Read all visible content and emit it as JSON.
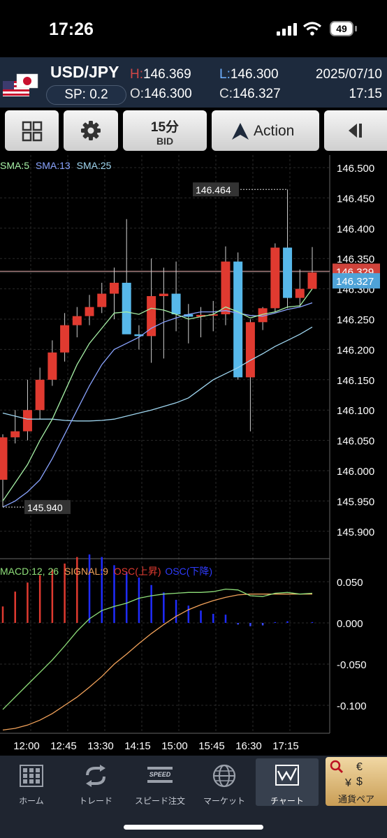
{
  "status_bar": {
    "time": "17:26",
    "battery": "49"
  },
  "header": {
    "pair": "USD/JPY",
    "spread": "SP: 0.2",
    "high_label": "H:",
    "high": "146.369",
    "low_label": "L:",
    "low": "146.300",
    "open_label": "O:",
    "open": "146.300",
    "close_label": "C:",
    "close": "146.327",
    "date": "2025/07/10",
    "clock": "17:15"
  },
  "toolbar": {
    "timeframe": "15分",
    "price_type": "BID",
    "action_label": "Action",
    "icons": [
      "grid-icon",
      "gear-icon",
      "action-logo-icon",
      "collapse-left-icon"
    ]
  },
  "chart_data": {
    "type": "candlestick",
    "instrument": "USD/JPY",
    "interval": "15分",
    "indicator_labels": {
      "sma5": "SMA:5",
      "sma13": "SMA:13",
      "sma25": "SMA:25"
    },
    "price_axis": {
      "ticks": [
        "146.500",
        "146.450",
        "146.400",
        "146.350",
        "146.300",
        "146.250",
        "146.200",
        "146.150",
        "146.100",
        "146.050",
        "146.000",
        "145.950",
        "145.900"
      ],
      "range": [
        145.86,
        146.52
      ]
    },
    "time_axis": [
      "12:00",
      "12:45",
      "13:30",
      "14:15",
      "15:00",
      "15:45",
      "16:30",
      "17:15"
    ],
    "ask_label": "146.329",
    "bid_label": "146.327",
    "high_marker": "146.464",
    "low_marker": "145.940",
    "candles": [
      {
        "o": 145.985,
        "h": 146.06,
        "l": 145.94,
        "c": 146.055
      },
      {
        "o": 146.055,
        "h": 146.1,
        "l": 146.045,
        "c": 146.065
      },
      {
        "o": 146.065,
        "h": 146.15,
        "l": 146.05,
        "c": 146.1
      },
      {
        "o": 146.1,
        "h": 146.17,
        "l": 146.085,
        "c": 146.15
      },
      {
        "o": 146.15,
        "h": 146.215,
        "l": 146.14,
        "c": 146.195
      },
      {
        "o": 146.195,
        "h": 146.26,
        "l": 146.18,
        "c": 146.24
      },
      {
        "o": 146.24,
        "h": 146.27,
        "l": 146.22,
        "c": 146.255
      },
      {
        "o": 146.255,
        "h": 146.29,
        "l": 146.24,
        "c": 146.27
      },
      {
        "o": 146.27,
        "h": 146.31,
        "l": 146.26,
        "c": 146.292
      },
      {
        "o": 146.292,
        "h": 146.335,
        "l": 146.25,
        "c": 146.31
      },
      {
        "o": 146.31,
        "h": 146.415,
        "l": 146.23,
        "c": 146.225
      },
      {
        "o": 146.225,
        "h": 146.24,
        "l": 146.2,
        "c": 146.222
      },
      {
        "o": 146.222,
        "h": 146.35,
        "l": 146.178,
        "c": 146.288
      },
      {
        "o": 146.288,
        "h": 146.335,
        "l": 146.185,
        "c": 146.292
      },
      {
        "o": 146.292,
        "h": 146.345,
        "l": 146.23,
        "c": 146.258
      },
      {
        "o": 146.258,
        "h": 146.275,
        "l": 146.21,
        "c": 146.254
      },
      {
        "o": 146.254,
        "h": 146.27,
        "l": 146.22,
        "c": 146.257
      },
      {
        "o": 146.257,
        "h": 146.28,
        "l": 146.23,
        "c": 146.258
      },
      {
        "o": 146.258,
        "h": 146.37,
        "l": 146.24,
        "c": 146.345
      },
      {
        "o": 146.345,
        "h": 146.36,
        "l": 146.15,
        "c": 146.154
      },
      {
        "o": 146.154,
        "h": 146.25,
        "l": 146.065,
        "c": 146.245
      },
      {
        "o": 146.245,
        "h": 146.27,
        "l": 146.232,
        "c": 146.268
      },
      {
        "o": 146.268,
        "h": 146.375,
        "l": 146.262,
        "c": 146.368
      },
      {
        "o": 146.368,
        "h": 146.464,
        "l": 146.268,
        "c": 146.285
      },
      {
        "o": 146.285,
        "h": 146.332,
        "l": 146.27,
        "c": 146.3
      },
      {
        "o": 146.3,
        "h": 146.369,
        "l": 146.3,
        "c": 146.327
      }
    ],
    "sma5": [
      145.95,
      145.98,
      146.01,
      146.05,
      146.085,
      146.13,
      146.175,
      146.21,
      146.235,
      146.26,
      146.262,
      146.258,
      146.268,
      146.265,
      146.258,
      146.25,
      146.254,
      146.258,
      146.27,
      146.262,
      146.252,
      146.258,
      146.262,
      146.27,
      146.272,
      146.3
    ],
    "sma13": [
      145.94,
      145.95,
      145.965,
      145.985,
      146.02,
      146.06,
      146.1,
      146.14,
      146.175,
      146.2,
      146.21,
      146.22,
      146.235,
      146.245,
      146.252,
      146.258,
      146.262,
      146.262,
      146.264,
      146.26,
      146.256,
      146.255,
      146.26,
      146.266,
      146.27,
      146.277
    ],
    "sma25": [
      146.095,
      146.09,
      146.085,
      146.085,
      146.085,
      146.083,
      146.082,
      146.082,
      146.083,
      146.085,
      146.09,
      146.095,
      146.1,
      146.106,
      146.112,
      146.12,
      146.135,
      146.15,
      146.16,
      146.17,
      146.182,
      146.193,
      146.205,
      146.215,
      146.225,
      146.237
    ],
    "macd_axis": {
      "ticks": [
        "0.050",
        "0.000",
        "-0.050",
        "-0.100"
      ],
      "range": [
        -0.135,
        0.075
      ]
    },
    "macd_labels": {
      "macd": "MACD:12, 26",
      "signal": "SIGNAL:9",
      "osc_up": "OSC(上昇)",
      "osc_down": "OSC(下降)"
    },
    "macd": [
      -0.105,
      -0.09,
      -0.075,
      -0.06,
      -0.045,
      -0.028,
      -0.01,
      0.005,
      0.015,
      0.02,
      0.024,
      0.03,
      0.033,
      0.035,
      0.036,
      0.037,
      0.037,
      0.038,
      0.041,
      0.04,
      0.033,
      0.032,
      0.036,
      0.037,
      0.035,
      0.036
    ],
    "signal": [
      -0.13,
      -0.128,
      -0.124,
      -0.118,
      -0.11,
      -0.1,
      -0.09,
      -0.078,
      -0.065,
      -0.05,
      -0.038,
      -0.025,
      -0.013,
      -0.002,
      0.008,
      0.016,
      0.022,
      0.027,
      0.031,
      0.034,
      0.035,
      0.035,
      0.035,
      0.035,
      0.035,
      0.035
    ],
    "osc": [
      0.02,
      0.038,
      0.049,
      0.058,
      0.065,
      0.072,
      0.08,
      0.083,
      0.08,
      0.07,
      0.062,
      0.055,
      0.046,
      0.037,
      0.028,
      0.021,
      0.015,
      0.011,
      0.01,
      -0.002,
      -0.004,
      -0.003,
      0.001,
      0.002,
      0.0,
      0.001
    ]
  },
  "tabs": [
    {
      "label": "ホーム",
      "icon": "home-grid-icon"
    },
    {
      "label": "トレード",
      "icon": "trade-arrows-icon"
    },
    {
      "label": "スピード注文",
      "icon": "speed-icon",
      "icon_text": "SPEED"
    },
    {
      "label": "マーケット",
      "icon": "globe-icon"
    },
    {
      "label": "チャート",
      "icon": "chart-icon",
      "active": true
    },
    {
      "label": "通貨ペア",
      "icon": "currency-pair-icon"
    }
  ],
  "colors": {
    "up": "#e03a30",
    "down": "#57b8ea",
    "sma5": "#a6f0a6",
    "sma13": "#8aa4ff",
    "sma25": "#9fd6f0",
    "macd": "#8fe07a",
    "signal": "#f2a25a",
    "header_bg": "#1d2a3d"
  }
}
